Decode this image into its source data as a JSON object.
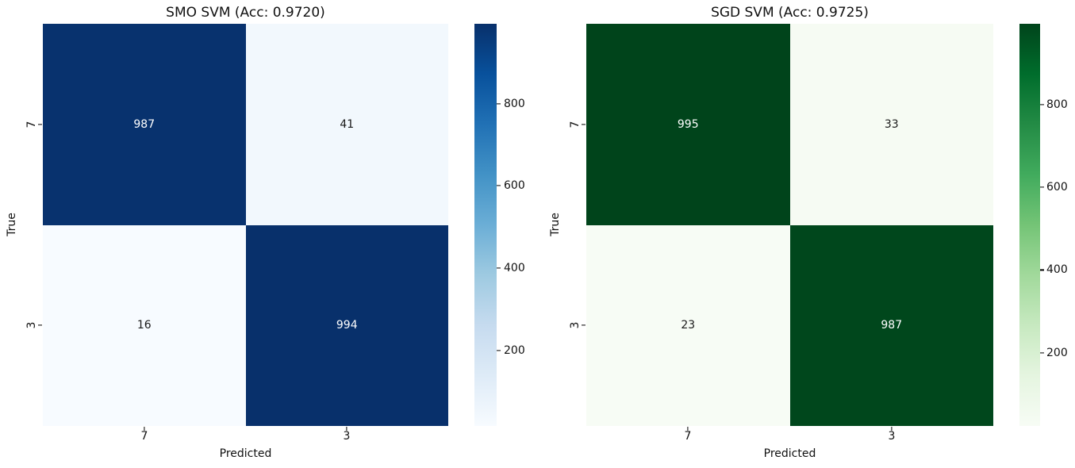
{
  "figure": {
    "background": "#ffffff",
    "text_color": "#111111"
  },
  "chart_data": [
    {
      "type": "heatmap",
      "title": "SMO SVM (Acc: 0.9720)",
      "xlabel": "Predicted",
      "ylabel": "True",
      "x_ticklabels": [
        "7",
        "3"
      ],
      "y_ticklabels": [
        "7",
        "3"
      ],
      "matrix": [
        [
          987,
          41
        ],
        [
          16,
          994
        ]
      ],
      "vmin": 16,
      "vmax": 994,
      "colormap": "Blues",
      "colorbar_ticks": [
        200,
        400,
        600,
        800
      ],
      "cell_colors": [
        [
          "#08326e",
          "#f2f8fd"
        ],
        [
          "#f7fbff",
          "#08306b"
        ]
      ],
      "cell_text_colors": [
        [
          "#ffffff",
          "#1a1a1a"
        ],
        [
          "#1a1a1a",
          "#ffffff"
        ]
      ],
      "colorbar_gradient": [
        "#f7fbff",
        "#deebf7",
        "#c6dbef",
        "#9ecae1",
        "#6baed6",
        "#4292c6",
        "#2171b5",
        "#08519c",
        "#08306b"
      ],
      "legend_position": "right-colorbar",
      "grid": false
    },
    {
      "type": "heatmap",
      "title": "SGD SVM (Acc: 0.9725)",
      "xlabel": "Predicted",
      "ylabel": "True",
      "x_ticklabels": [
        "7",
        "3"
      ],
      "y_ticklabels": [
        "7",
        "3"
      ],
      "matrix": [
        [
          995,
          33
        ],
        [
          23,
          987
        ]
      ],
      "vmin": 23,
      "vmax": 995,
      "colormap": "Greens",
      "colorbar_ticks": [
        200,
        400,
        600,
        800
      ],
      "cell_colors": [
        [
          "#00441b",
          "#f6fbf3"
        ],
        [
          "#f7fcf5",
          "#00471c"
        ]
      ],
      "cell_text_colors": [
        [
          "#ffffff",
          "#1a1a1a"
        ],
        [
          "#1a1a1a",
          "#ffffff"
        ]
      ],
      "colorbar_gradient": [
        "#f7fcf5",
        "#e5f5e0",
        "#c7e9c0",
        "#a1d99b",
        "#74c476",
        "#41ab5d",
        "#238b45",
        "#006d2c",
        "#00441b"
      ],
      "legend_position": "right-colorbar",
      "grid": false
    }
  ]
}
